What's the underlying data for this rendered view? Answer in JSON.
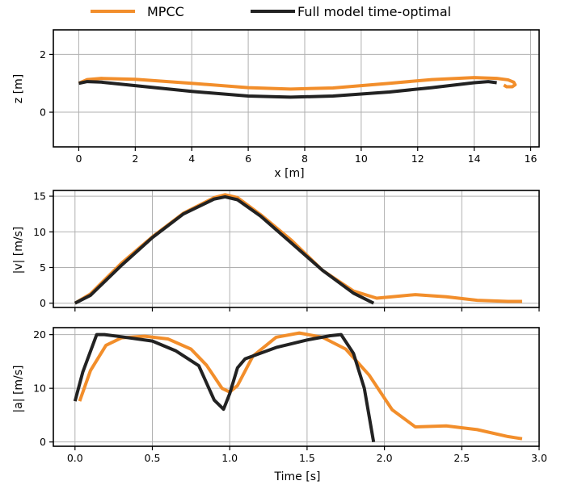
{
  "legend": [
    {
      "label": "MPCC",
      "color": "#f28e2b"
    },
    {
      "label": "Full model time-optimal",
      "color": "#222222"
    }
  ],
  "chart_data": [
    {
      "type": "line",
      "xlabel": "x [m]",
      "ylabel": "z [m]",
      "xlim": [
        -0.9,
        16.3
      ],
      "ylim": [
        -1.2,
        2.85
      ],
      "xticks": [
        "0",
        "2",
        "4",
        "6",
        "8",
        "10",
        "12",
        "14",
        "16"
      ],
      "yticks": [
        "0",
        "2"
      ],
      "grid": true,
      "series": [
        {
          "name": "MPCC",
          "color": "#f28e2b",
          "x": [
            0,
            0.3,
            0.8,
            2,
            4,
            6,
            7.5,
            9,
            11,
            12.5,
            14,
            14.8,
            15.2,
            15.4,
            15.45,
            15.35,
            15.15,
            15.05
          ],
          "y": [
            1.0,
            1.13,
            1.17,
            1.14,
            1.0,
            0.85,
            0.8,
            0.84,
            1.0,
            1.13,
            1.2,
            1.17,
            1.12,
            1.04,
            0.95,
            0.88,
            0.88,
            0.94
          ]
        },
        {
          "name": "Full model time-optimal",
          "color": "#222222",
          "x": [
            0,
            0.3,
            0.8,
            2,
            4,
            6,
            7.5,
            9,
            11,
            12.5,
            14,
            14.5,
            14.8
          ],
          "y": [
            1.0,
            1.06,
            1.04,
            0.92,
            0.72,
            0.56,
            0.52,
            0.56,
            0.7,
            0.85,
            1.02,
            1.06,
            1.02
          ]
        }
      ]
    },
    {
      "type": "line",
      "xlabel": "",
      "ylabel": "|v| [m/s]",
      "xlim": [
        -0.14,
        3.0
      ],
      "ylim": [
        -0.6,
        15.8
      ],
      "xticks": [
        "0.0",
        "0.5",
        "1.0",
        "1.5",
        "2.0",
        "2.5",
        "3.0"
      ],
      "yticks": [
        "0",
        "5",
        "10",
        "15"
      ],
      "grid": true,
      "series": [
        {
          "name": "MPCC",
          "color": "#f28e2b",
          "x": [
            0,
            0.1,
            0.3,
            0.5,
            0.7,
            0.9,
            0.97,
            1.05,
            1.2,
            1.4,
            1.6,
            1.8,
            1.95,
            2.05,
            2.2,
            2.4,
            2.6,
            2.8,
            2.89
          ],
          "y": [
            0,
            1.3,
            5.6,
            9.3,
            12.6,
            14.8,
            15.2,
            14.8,
            12.4,
            8.8,
            4.6,
            1.7,
            0.7,
            0.9,
            1.2,
            0.9,
            0.4,
            0.25,
            0.25
          ]
        },
        {
          "name": "Full model time-optimal",
          "color": "#222222",
          "x": [
            0,
            0.1,
            0.3,
            0.5,
            0.7,
            0.9,
            0.97,
            1.05,
            1.2,
            1.4,
            1.6,
            1.8,
            1.93
          ],
          "y": [
            0,
            1.1,
            5.3,
            9.2,
            12.5,
            14.6,
            14.9,
            14.5,
            12.2,
            8.4,
            4.6,
            1.4,
            0.0
          ]
        }
      ]
    },
    {
      "type": "line",
      "xlabel": "Time [s]",
      "ylabel": "|a| [m/s]",
      "xlim": [
        -0.14,
        3.0
      ],
      "ylim": [
        -0.8,
        21.3
      ],
      "xticks": [
        "0.0",
        "0.5",
        "1.0",
        "1.5",
        "2.0",
        "2.5",
        "3.0"
      ],
      "yticks": [
        "0",
        "10",
        "20"
      ],
      "grid": true,
      "series": [
        {
          "name": "MPCC",
          "color": "#f28e2b",
          "x": [
            0.03,
            0.1,
            0.2,
            0.3,
            0.45,
            0.6,
            0.75,
            0.85,
            0.95,
            1.0,
            1.05,
            1.15,
            1.3,
            1.45,
            1.6,
            1.75,
            1.9,
            2.05,
            2.2,
            2.4,
            2.6,
            2.8,
            2.89
          ],
          "y": [
            7.6,
            13.3,
            18.0,
            19.4,
            19.7,
            19.2,
            17.3,
            14.3,
            10.0,
            9.3,
            10.5,
            16.0,
            19.5,
            20.3,
            19.5,
            17.3,
            12.5,
            6.0,
            2.8,
            3.0,
            2.3,
            1.0,
            0.6
          ]
        },
        {
          "name": "Full model time-optimal",
          "color": "#222222",
          "x": [
            0,
            0.05,
            0.14,
            0.19,
            0.3,
            0.5,
            0.65,
            0.8,
            0.9,
            0.96,
            1.0,
            1.05,
            1.1,
            1.3,
            1.5,
            1.65,
            1.72,
            1.8,
            1.87,
            1.93
          ],
          "y": [
            7.6,
            13.0,
            20.0,
            20.0,
            19.6,
            18.8,
            17.0,
            14.2,
            7.8,
            6.1,
            9.0,
            13.8,
            15.5,
            17.6,
            19.0,
            19.8,
            20.0,
            16.5,
            10.0,
            0.0
          ]
        }
      ]
    }
  ]
}
